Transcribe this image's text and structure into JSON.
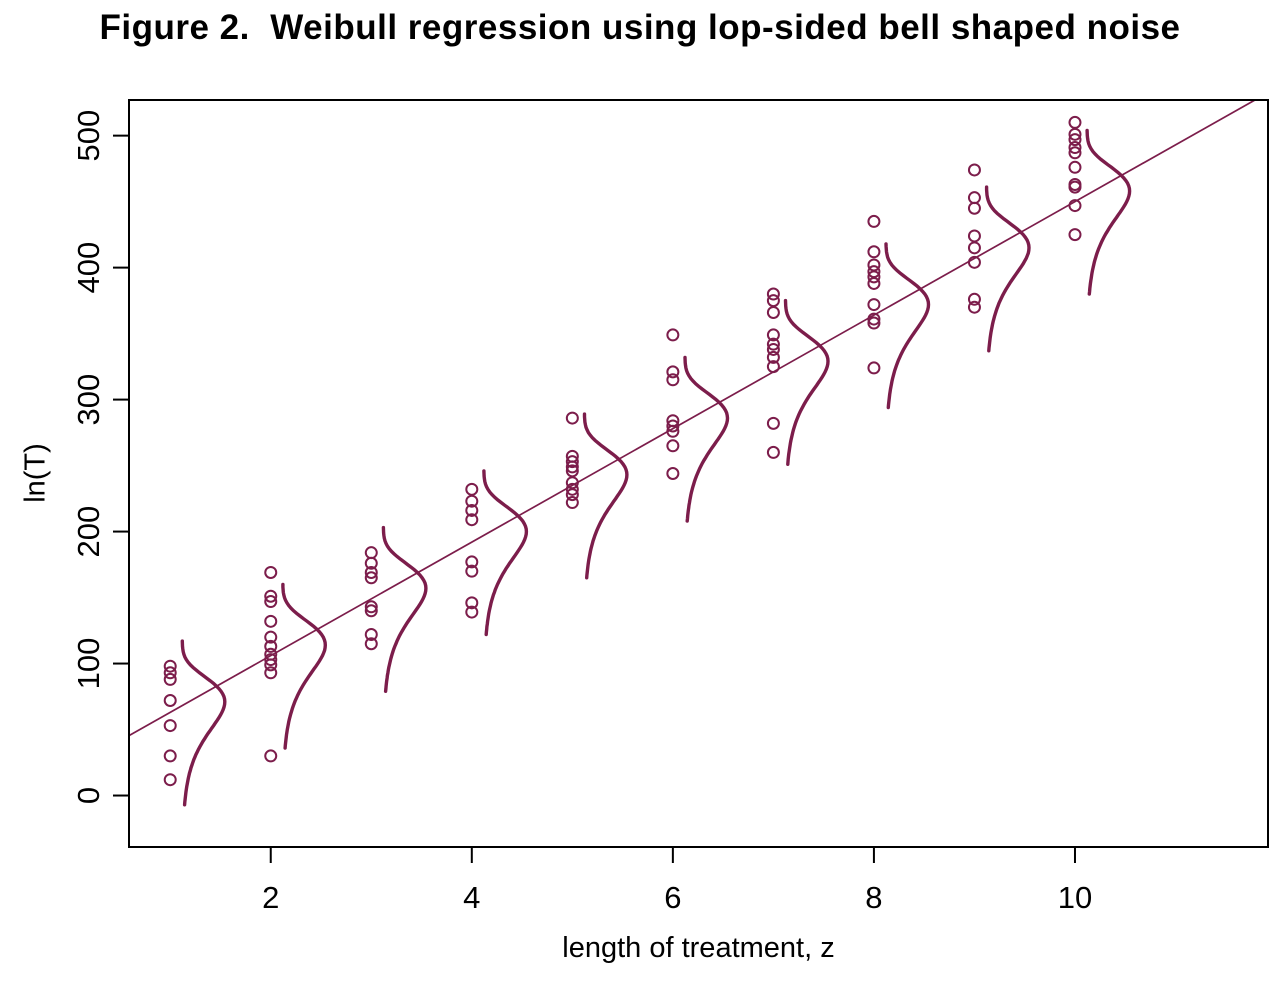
{
  "chart_data": {
    "type": "scatter",
    "title": "Figure 2.  Weibull regression using lop-sided bell shaped noise",
    "xlabel": "length of treatment, z",
    "ylabel": "ln(T)",
    "xlim": [
      0.59,
      11.92
    ],
    "ylim": [
      -39,
      527
    ],
    "x_ticks": [
      2,
      4,
      6,
      8,
      10
    ],
    "y_ticks": [
      0,
      100,
      200,
      300,
      400,
      500
    ],
    "grid": false,
    "legend": "none",
    "point_style": "open-circle",
    "color": "#7C1D4B",
    "axis_color": "#000000",
    "regression_line": {
      "intercept": 20,
      "slope": 43
    },
    "clusters": [
      {
        "z": 1,
        "points": [
          98,
          93,
          88,
          72,
          53,
          30,
          12
        ]
      },
      {
        "z": 2,
        "points": [
          169,
          151,
          147,
          132,
          120,
          113,
          107,
          103,
          99,
          93,
          30
        ]
      },
      {
        "z": 3,
        "points": [
          184,
          176,
          169,
          165,
          143,
          140,
          122,
          115
        ]
      },
      {
        "z": 4,
        "points": [
          232,
          223,
          216,
          209,
          177,
          170,
          146,
          139
        ]
      },
      {
        "z": 5,
        "points": [
          286,
          257,
          253,
          249,
          246,
          237,
          232,
          228,
          222
        ]
      },
      {
        "z": 6,
        "points": [
          349,
          321,
          315,
          284,
          280,
          276,
          265,
          244
        ]
      },
      {
        "z": 7,
        "points": [
          380,
          375,
          366,
          349,
          342,
          338,
          332,
          325,
          282,
          260
        ]
      },
      {
        "z": 8,
        "points": [
          435,
          412,
          402,
          397,
          393,
          388,
          372,
          361,
          358,
          324
        ]
      },
      {
        "z": 9,
        "points": [
          474,
          453,
          445,
          424,
          415,
          404,
          376,
          370
        ]
      },
      {
        "z": 10,
        "points": [
          510,
          501,
          497,
          491,
          487,
          476,
          463,
          461,
          447,
          425
        ]
      }
    ],
    "noise_curves": {
      "shape": "gumbel-min-density",
      "description": "lop-sided bell drawn vertically at each z, bulging right, long lower tail",
      "center_offset_from_line": 8,
      "beta": 20,
      "amplitude_z_units": 1.15,
      "base_offset_z_units": 0.12,
      "v_range_rel": [
        -78,
        46
      ]
    }
  }
}
